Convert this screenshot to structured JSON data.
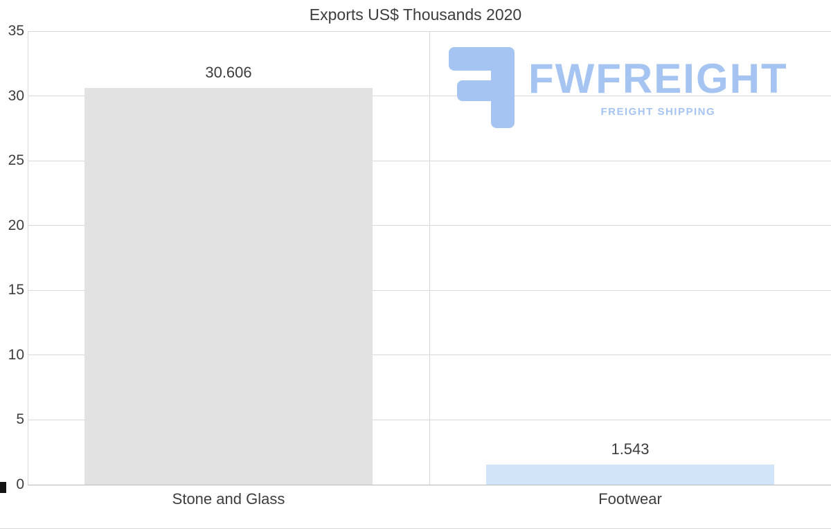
{
  "chart_data": {
    "type": "bar",
    "title": "Exports US$ Thousands 2020",
    "categories": [
      "Stone and Glass",
      "Footwear"
    ],
    "values": [
      30.606,
      1.543
    ],
    "value_labels": [
      "30.606",
      "1.543"
    ],
    "bar_colors": [
      "#e2e2e2",
      "#d2e4f8"
    ],
    "xlabel": "",
    "ylabel": "",
    "ylim": [
      0,
      35
    ],
    "yticks": [
      0,
      5,
      10,
      15,
      20,
      25,
      30,
      35
    ],
    "grid": true,
    "legend_position": "none"
  },
  "watermark": {
    "brand": "FWFREIGHT",
    "tagline": "FREIGHT SHIPPING",
    "color": "#a6c4f1"
  },
  "colors": {
    "title_text": "#3d3d3d",
    "axis_text": "#3d3d3d",
    "gridline": "#d9d9d9",
    "baseline": "#b9b9b9",
    "background": "#ffffff"
  }
}
